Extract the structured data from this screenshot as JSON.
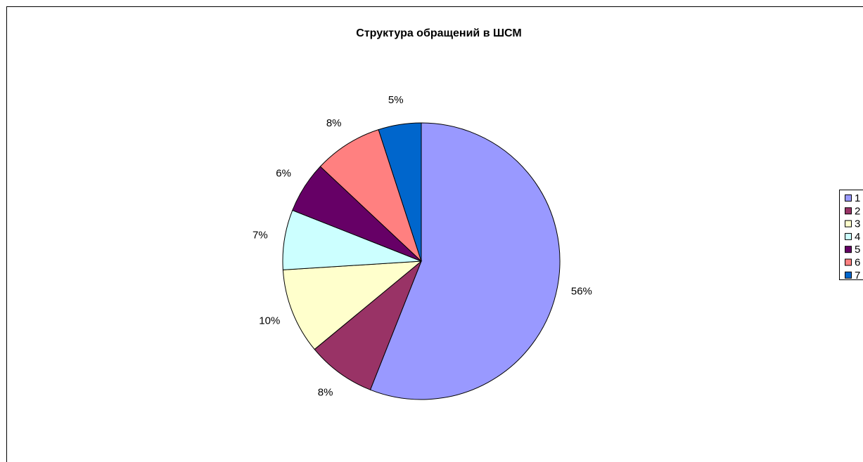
{
  "chart_data": {
    "type": "pie",
    "title": "Структура обращений в ШСМ",
    "categories": [
      "1",
      "2",
      "3",
      "4",
      "5",
      "6",
      "7"
    ],
    "values": [
      56,
      8,
      10,
      7,
      6,
      8,
      5
    ],
    "value_labels": [
      "56%",
      "8%",
      "10%",
      "7%",
      "6%",
      "8%",
      "5%"
    ],
    "colors": [
      "#9999ff",
      "#993366",
      "#ffffcc",
      "#ccffff",
      "#660066",
      "#ff8080",
      "#0066cc"
    ],
    "legend": "right"
  }
}
